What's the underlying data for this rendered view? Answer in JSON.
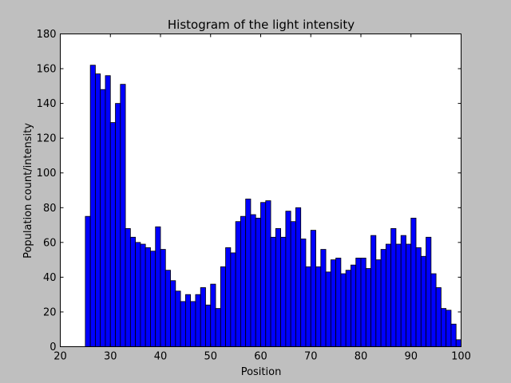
{
  "chart_data": {
    "type": "bar",
    "title": "Histogram of the light intensity",
    "xlabel": "Position",
    "ylabel": "Population count/intensity",
    "xlim": [
      20,
      100
    ],
    "ylim": [
      0,
      180
    ],
    "xticks": [
      "20",
      "30",
      "40",
      "50",
      "60",
      "70",
      "80",
      "90",
      "100"
    ],
    "yticks": [
      "0",
      "20",
      "40",
      "60",
      "80",
      "100",
      "120",
      "140",
      "160",
      "180"
    ],
    "grid": false,
    "bar_color": "#0000ff",
    "bin_width": 1,
    "bin_starts": [
      25,
      26,
      27,
      28,
      29,
      30,
      31,
      32,
      33,
      34,
      35,
      36,
      37,
      38,
      39,
      40,
      41,
      42,
      43,
      44,
      45,
      46,
      47,
      48,
      49,
      50,
      51,
      52,
      53,
      54,
      55,
      56,
      57,
      58,
      59,
      60,
      61,
      62,
      63,
      64,
      65,
      66,
      67,
      68,
      69,
      70,
      71,
      72,
      73,
      74,
      75,
      76,
      77,
      78,
      79,
      80,
      81,
      82,
      83,
      84,
      85,
      86,
      87,
      88,
      89,
      90,
      91,
      92,
      93,
      94,
      95,
      96,
      97,
      98,
      99
    ],
    "values": [
      75,
      162,
      157,
      148,
      156,
      129,
      140,
      151,
      68,
      63,
      60,
      59,
      57,
      55,
      69,
      56,
      44,
      38,
      32,
      26,
      30,
      26,
      30,
      34,
      24,
      36,
      22,
      46,
      57,
      54,
      72,
      75,
      85,
      76,
      74,
      83,
      84,
      63,
      68,
      63,
      78,
      72,
      80,
      62,
      46,
      67,
      46,
      56,
      43,
      50,
      51,
      42,
      44,
      47,
      51,
      51,
      45,
      64,
      50,
      56,
      59,
      68,
      59,
      64,
      59,
      74,
      57,
      52,
      63,
      42,
      34,
      22,
      21,
      13,
      4
    ]
  }
}
